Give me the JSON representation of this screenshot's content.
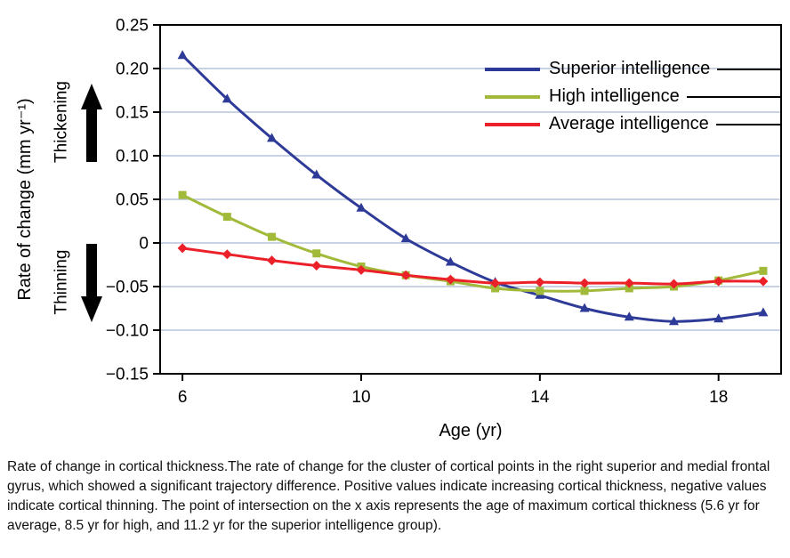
{
  "caption": "Rate of change in cortical thickness.The rate of change for the cluster of cortical points in the right superior and medial frontal gyrus, which showed a significant trajectory difference. Positive values indicate increasing cortical thickness, negative values indicate cortical thinning. The point of intersection on the x axis represents the age of maximum cortical thickness (5.6 yr for average, 8.5 yr for high, and 11.2 yr for the superior intelligence group).",
  "chart_data": {
    "type": "line",
    "title": "",
    "xlabel": "Age (yr)",
    "ylabel": "Rate of change (mm yr⁻¹)",
    "annotations": {
      "thickening": "Thickening",
      "thinning": "Thinning"
    },
    "x": [
      6,
      7,
      8,
      9,
      10,
      11,
      12,
      13,
      14,
      15,
      16,
      17,
      18,
      19
    ],
    "series": [
      {
        "name": "Superior intelligence",
        "color": "#2e3a97",
        "marker": "triangle",
        "values": [
          0.215,
          0.165,
          0.12,
          0.078,
          0.04,
          0.005,
          -0.022,
          -0.045,
          -0.06,
          -0.075,
          -0.085,
          -0.09,
          -0.087,
          -0.08
        ]
      },
      {
        "name": "High intelligence",
        "color": "#a2ba3a",
        "marker": "square",
        "values": [
          0.055,
          0.03,
          0.007,
          -0.012,
          -0.027,
          -0.037,
          -0.044,
          -0.052,
          -0.055,
          -0.055,
          -0.052,
          -0.05,
          -0.043,
          -0.032
        ]
      },
      {
        "name": "Average intelligence",
        "color": "#ec2028",
        "marker": "diamond",
        "values": [
          -0.006,
          -0.013,
          -0.02,
          -0.026,
          -0.031,
          -0.037,
          -0.042,
          -0.046,
          -0.045,
          -0.046,
          -0.046,
          -0.047,
          -0.044,
          -0.044
        ]
      }
    ],
    "xticks": [
      6,
      10,
      14,
      18
    ],
    "yticks": [
      0.25,
      0.2,
      0.15,
      0.1,
      0.05,
      0,
      -0.05,
      -0.1,
      -0.15
    ],
    "ytick_labels": [
      "0.25",
      "0.20",
      "0.15",
      "0.10",
      "0.05",
      "0",
      "−0.05",
      "−0.10",
      "−0.15"
    ],
    "xlim": [
      5.5,
      19.4
    ],
    "ylim": [
      -0.15,
      0.25
    ],
    "grid": "horizontal",
    "legend_position": "top-right",
    "colors": {
      "grid": "#b6c4d8",
      "axis": "#000000",
      "background": "#ffffff"
    }
  }
}
